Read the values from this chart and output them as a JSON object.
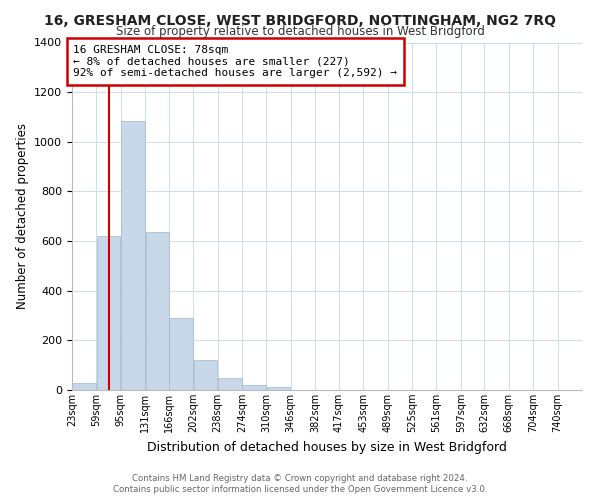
{
  "title": "16, GRESHAM CLOSE, WEST BRIDGFORD, NOTTINGHAM, NG2 7RQ",
  "subtitle": "Size of property relative to detached houses in West Bridgford",
  "xlabel": "Distribution of detached houses by size in West Bridgford",
  "ylabel": "Number of detached properties",
  "bin_labels": [
    "23sqm",
    "59sqm",
    "95sqm",
    "131sqm",
    "166sqm",
    "202sqm",
    "238sqm",
    "274sqm",
    "310sqm",
    "346sqm",
    "382sqm",
    "417sqm",
    "453sqm",
    "489sqm",
    "525sqm",
    "561sqm",
    "597sqm",
    "632sqm",
    "668sqm",
    "704sqm",
    "740sqm"
  ],
  "bar_values": [
    30,
    620,
    1085,
    635,
    290,
    120,
    47,
    20,
    13,
    0,
    0,
    0,
    0,
    0,
    0,
    0,
    0,
    0,
    0,
    0,
    0
  ],
  "bar_color": "#c8d8e8",
  "bar_edge_color": "#a0b8cc",
  "property_line_x": 78,
  "bins_start": [
    23,
    59,
    95,
    131,
    166,
    202,
    238,
    274,
    310,
    346,
    382,
    417,
    453,
    489,
    525,
    561,
    597,
    632,
    668,
    704,
    740
  ],
  "bin_width": 36,
  "annotation_title": "16 GRESHAM CLOSE: 78sqm",
  "annotation_line1": "← 8% of detached houses are smaller (227)",
  "annotation_line2": "92% of semi-detached houses are larger (2,592) →",
  "annotation_box_color": "#ffffff",
  "annotation_box_edge": "#cc0000",
  "vline_color": "#cc0000",
  "ylim": [
    0,
    1400
  ],
  "yticks": [
    0,
    200,
    400,
    600,
    800,
    1000,
    1200,
    1400
  ],
  "footer_line1": "Contains HM Land Registry data © Crown copyright and database right 2024.",
  "footer_line2": "Contains public sector information licensed under the Open Government Licence v3.0.",
  "bg_color": "#ffffff",
  "grid_color": "#d0dce8"
}
